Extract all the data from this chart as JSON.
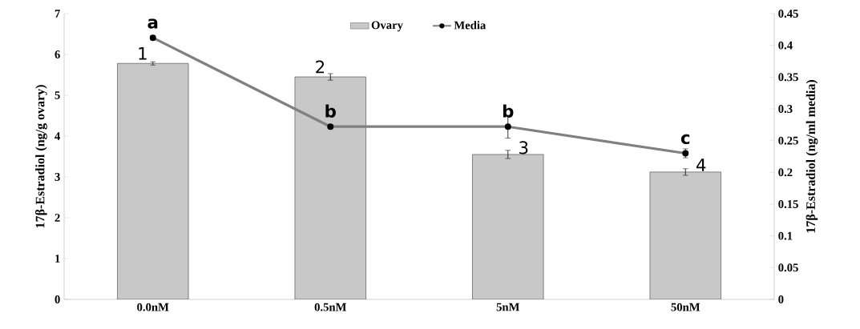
{
  "chart_data": {
    "type": "bar",
    "ylabel": "17β-Estradiol (ng/g  ovary)",
    "y2label": "17β-Estradiol (ng/ml  media)",
    "categories": [
      "0.0nM",
      "0.5nM",
      "5nM",
      "50nM"
    ],
    "series": [
      {
        "name": "Ovary",
        "color": "#c8c8c8",
        "values": [
          5.78,
          5.45,
          3.55,
          3.12
        ],
        "errors": [
          0.04,
          0.08,
          0.1,
          0.08
        ]
      },
      {
        "name": "Media",
        "type": "line",
        "axis": "y2",
        "color": "#808080",
        "marker": "circle",
        "values": [
          0.412,
          0.272,
          0.272,
          0.23
        ],
        "errors": [
          0.003,
          0.003,
          0.018,
          0.007
        ]
      }
    ],
    "ylim": [
      0,
      7
    ],
    "yticks": [
      0,
      1,
      2,
      3,
      4,
      5,
      6,
      7
    ],
    "y2lim": [
      0,
      0.45
    ],
    "y2ticks": [
      0,
      0.05,
      0.1,
      0.15,
      0.2,
      0.25,
      0.3,
      0.35,
      0.4,
      0.45
    ],
    "annotations": [
      {
        "text": "a",
        "x": "0.0nM",
        "y": 6.41
      },
      {
        "text": "b",
        "x": "0.5nM",
        "y": 4.23
      },
      {
        "text": "b",
        "x": "5nM",
        "y": 4.23
      },
      {
        "text": "c",
        "x": "50nM",
        "y": 3.58
      },
      {
        "text": "1",
        "x": "0.0nM",
        "y": 5.78
      },
      {
        "text": "2",
        "x": "0.5nM",
        "y": 5.45
      },
      {
        "text": "3",
        "x": "5nM",
        "y": 3.55
      },
      {
        "text": "4",
        "x": "50nM",
        "y": 3.12
      }
    ],
    "legend": "top",
    "grid": false
  }
}
